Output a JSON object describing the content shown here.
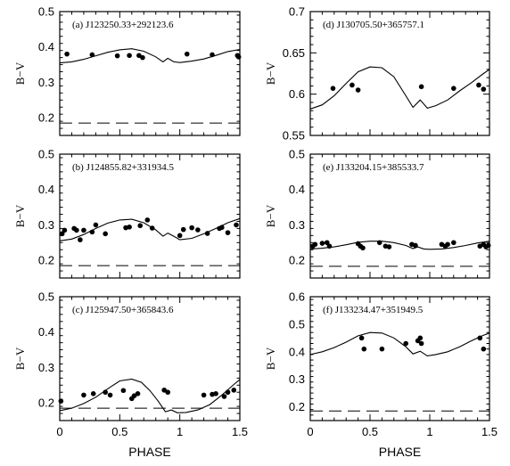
{
  "figure": {
    "xlabel": "PHASE",
    "ylabel": "B−V"
  },
  "chart_data": [
    {
      "type": "scatter",
      "title": "(a) J123250.33+292123.6",
      "xlabel": "",
      "ylabel": "B−V",
      "xlim": [
        0,
        1.5
      ],
      "ylim": [
        0.15,
        0.5
      ],
      "yticks": [
        0.2,
        0.3,
        0.4,
        0.5
      ],
      "xticks": [
        0,
        0.5,
        1,
        1.5
      ],
      "points": [
        [
          0.06,
          0.38
        ],
        [
          0.27,
          0.378
        ],
        [
          0.48,
          0.375
        ],
        [
          0.58,
          0.376
        ],
        [
          0.66,
          0.376
        ],
        [
          0.69,
          0.37
        ],
        [
          1.06,
          0.38
        ],
        [
          1.27,
          0.378
        ],
        [
          1.48,
          0.376
        ],
        [
          1.49,
          0.372
        ]
      ],
      "curve": [
        [
          0,
          0.355
        ],
        [
          0.1,
          0.358
        ],
        [
          0.2,
          0.365
        ],
        [
          0.3,
          0.375
        ],
        [
          0.4,
          0.385
        ],
        [
          0.5,
          0.392
        ],
        [
          0.6,
          0.395
        ],
        [
          0.7,
          0.388
        ],
        [
          0.8,
          0.372
        ],
        [
          0.86,
          0.358
        ],
        [
          0.9,
          0.368
        ],
        [
          0.95,
          0.358
        ],
        [
          1.0,
          0.356
        ],
        [
          1.1,
          0.36
        ],
        [
          1.2,
          0.366
        ],
        [
          1.3,
          0.376
        ],
        [
          1.4,
          0.387
        ],
        [
          1.5,
          0.393
        ]
      ],
      "reference_line": 0.185
    },
    {
      "type": "scatter",
      "title": "(b) J124855.82+331934.5",
      "xlabel": "",
      "ylabel": "B−V",
      "xlim": [
        0,
        1.5
      ],
      "ylim": [
        0.15,
        0.5
      ],
      "yticks": [
        0.2,
        0.3,
        0.4,
        0.5
      ],
      "xticks": [
        0,
        0.5,
        1,
        1.5
      ],
      "points": [
        [
          0.02,
          0.275
        ],
        [
          0.04,
          0.285
        ],
        [
          0.12,
          0.29
        ],
        [
          0.14,
          0.285
        ],
        [
          0.17,
          0.258
        ],
        [
          0.2,
          0.285
        ],
        [
          0.27,
          0.28
        ],
        [
          0.3,
          0.3
        ],
        [
          0.38,
          0.275
        ],
        [
          0.55,
          0.292
        ],
        [
          0.58,
          0.294
        ],
        [
          0.67,
          0.298
        ],
        [
          0.73,
          0.314
        ],
        [
          0.77,
          0.291
        ],
        [
          1.0,
          0.27
        ],
        [
          1.03,
          0.287
        ],
        [
          1.1,
          0.292
        ],
        [
          1.15,
          0.286
        ],
        [
          1.23,
          0.276
        ],
        [
          1.33,
          0.29
        ],
        [
          1.35,
          0.293
        ],
        [
          1.4,
          0.278
        ],
        [
          1.47,
          0.3
        ]
      ],
      "curve": [
        [
          0,
          0.255
        ],
        [
          0.1,
          0.26
        ],
        [
          0.2,
          0.273
        ],
        [
          0.3,
          0.29
        ],
        [
          0.4,
          0.305
        ],
        [
          0.5,
          0.314
        ],
        [
          0.6,
          0.316
        ],
        [
          0.7,
          0.306
        ],
        [
          0.8,
          0.286
        ],
        [
          0.86,
          0.268
        ],
        [
          0.9,
          0.277
        ],
        [
          0.95,
          0.268
        ],
        [
          1.0,
          0.258
        ],
        [
          1.1,
          0.262
        ],
        [
          1.2,
          0.275
        ],
        [
          1.3,
          0.29
        ],
        [
          1.4,
          0.306
        ],
        [
          1.5,
          0.318
        ]
      ],
      "reference_line": 0.185
    },
    {
      "type": "scatter",
      "title": "(c) J125947.50+365843.6",
      "xlabel": "PHASE",
      "ylabel": "B−V",
      "xlim": [
        0,
        1.5
      ],
      "ylim": [
        0.15,
        0.5
      ],
      "yticks": [
        0.2,
        0.3,
        0.4,
        0.5
      ],
      "xticks": [
        0,
        0.5,
        1,
        1.5
      ],
      "xticklabels": [
        "0",
        "0.5",
        "1",
        "1.5"
      ],
      "points": [
        [
          0.01,
          0.205
        ],
        [
          0.2,
          0.222
        ],
        [
          0.28,
          0.226
        ],
        [
          0.38,
          0.23
        ],
        [
          0.42,
          0.222
        ],
        [
          0.53,
          0.235
        ],
        [
          0.6,
          0.212
        ],
        [
          0.62,
          0.22
        ],
        [
          0.65,
          0.226
        ],
        [
          0.87,
          0.236
        ],
        [
          0.9,
          0.23
        ],
        [
          1.2,
          0.222
        ],
        [
          1.27,
          0.224
        ],
        [
          1.3,
          0.226
        ],
        [
          1.37,
          0.218
        ],
        [
          1.4,
          0.23
        ],
        [
          1.45,
          0.236
        ]
      ],
      "curve": [
        [
          0,
          0.178
        ],
        [
          0.1,
          0.185
        ],
        [
          0.2,
          0.198
        ],
        [
          0.3,
          0.216
        ],
        [
          0.4,
          0.24
        ],
        [
          0.5,
          0.262
        ],
        [
          0.6,
          0.267
        ],
        [
          0.68,
          0.258
        ],
        [
          0.75,
          0.235
        ],
        [
          0.82,
          0.205
        ],
        [
          0.88,
          0.175
        ],
        [
          0.93,
          0.18
        ],
        [
          0.98,
          0.172
        ],
        [
          1.05,
          0.173
        ],
        [
          1.15,
          0.18
        ],
        [
          1.25,
          0.195
        ],
        [
          1.35,
          0.222
        ],
        [
          1.45,
          0.252
        ],
        [
          1.5,
          0.266
        ]
      ],
      "reference_line": 0.185
    },
    {
      "type": "scatter",
      "title": "(d) J130705.50+365757.1",
      "xlabel": "",
      "ylabel": "B−V",
      "xlim": [
        0,
        1.5
      ],
      "ylim": [
        0.55,
        0.7
      ],
      "yticks": [
        0.55,
        0.6,
        0.65,
        0.7
      ],
      "xticks": [
        0,
        0.5,
        1,
        1.5
      ],
      "points": [
        [
          0.19,
          0.607
        ],
        [
          0.35,
          0.611
        ],
        [
          0.4,
          0.605
        ],
        [
          0.93,
          0.609
        ],
        [
          1.2,
          0.607
        ],
        [
          1.41,
          0.611
        ],
        [
          1.45,
          0.606
        ]
      ],
      "curve": [
        [
          0,
          0.582
        ],
        [
          0.1,
          0.587
        ],
        [
          0.2,
          0.598
        ],
        [
          0.3,
          0.613
        ],
        [
          0.4,
          0.627
        ],
        [
          0.5,
          0.633
        ],
        [
          0.6,
          0.632
        ],
        [
          0.7,
          0.621
        ],
        [
          0.8,
          0.598
        ],
        [
          0.86,
          0.584
        ],
        [
          0.92,
          0.593
        ],
        [
          0.98,
          0.583
        ],
        [
          1.05,
          0.586
        ],
        [
          1.15,
          0.593
        ],
        [
          1.25,
          0.604
        ],
        [
          1.35,
          0.614
        ],
        [
          1.45,
          0.625
        ],
        [
          1.5,
          0.63
        ]
      ]
    },
    {
      "type": "scatter",
      "title": "(e) J133204.15+385533.7",
      "xlabel": "",
      "ylabel": "B−V",
      "xlim": [
        0,
        1.5
      ],
      "ylim": [
        0.15,
        0.5
      ],
      "yticks": [
        0.2,
        0.3,
        0.4,
        0.5
      ],
      "xticks": [
        0,
        0.5,
        1,
        1.5
      ],
      "points": [
        [
          0.02,
          0.24
        ],
        [
          0.04,
          0.245
        ],
        [
          0.1,
          0.248
        ],
        [
          0.14,
          0.25
        ],
        [
          0.16,
          0.24
        ],
        [
          0.4,
          0.247
        ],
        [
          0.42,
          0.24
        ],
        [
          0.44,
          0.235
        ],
        [
          0.58,
          0.25
        ],
        [
          0.63,
          0.24
        ],
        [
          0.66,
          0.238
        ],
        [
          0.85,
          0.245
        ],
        [
          0.88,
          0.242
        ],
        [
          1.1,
          0.245
        ],
        [
          1.13,
          0.24
        ],
        [
          1.15,
          0.245
        ],
        [
          1.2,
          0.25
        ],
        [
          1.42,
          0.24
        ],
        [
          1.45,
          0.245
        ],
        [
          1.47,
          0.238
        ],
        [
          1.49,
          0.242
        ]
      ],
      "curve": [
        [
          0,
          0.232
        ],
        [
          0.1,
          0.234
        ],
        [
          0.2,
          0.238
        ],
        [
          0.3,
          0.244
        ],
        [
          0.4,
          0.251
        ],
        [
          0.5,
          0.254
        ],
        [
          0.6,
          0.254
        ],
        [
          0.7,
          0.25
        ],
        [
          0.8,
          0.242
        ],
        [
          0.86,
          0.233
        ],
        [
          0.9,
          0.238
        ],
        [
          0.95,
          0.232
        ],
        [
          1.0,
          0.231
        ],
        [
          1.1,
          0.232
        ],
        [
          1.2,
          0.236
        ],
        [
          1.3,
          0.242
        ],
        [
          1.4,
          0.249
        ],
        [
          1.5,
          0.254
        ]
      ],
      "reference_line": 0.183
    },
    {
      "type": "scatter",
      "title": "(f) J133234.47+351949.5",
      "xlabel": "PHASE",
      "ylabel": "B−V",
      "xlim": [
        0,
        1.5
      ],
      "ylim": [
        0.15,
        0.6
      ],
      "yticks": [
        0.2,
        0.3,
        0.4,
        0.5,
        0.6
      ],
      "xticks": [
        0,
        0.5,
        1,
        1.5
      ],
      "xticklabels": [
        "0",
        "0.5",
        "1",
        "1.5"
      ],
      "points": [
        [
          0.43,
          0.45
        ],
        [
          0.45,
          0.41
        ],
        [
          0.6,
          0.41
        ],
        [
          0.8,
          0.43
        ],
        [
          0.9,
          0.44
        ],
        [
          0.92,
          0.45
        ],
        [
          0.93,
          0.43
        ],
        [
          1.42,
          0.45
        ],
        [
          1.45,
          0.41
        ]
      ],
      "curve": [
        [
          0,
          0.39
        ],
        [
          0.1,
          0.4
        ],
        [
          0.2,
          0.415
        ],
        [
          0.3,
          0.435
        ],
        [
          0.4,
          0.458
        ],
        [
          0.5,
          0.47
        ],
        [
          0.6,
          0.468
        ],
        [
          0.7,
          0.45
        ],
        [
          0.8,
          0.418
        ],
        [
          0.86,
          0.392
        ],
        [
          0.92,
          0.402
        ],
        [
          0.98,
          0.385
        ],
        [
          1.05,
          0.39
        ],
        [
          1.15,
          0.4
        ],
        [
          1.25,
          0.418
        ],
        [
          1.35,
          0.44
        ],
        [
          1.45,
          0.46
        ],
        [
          1.5,
          0.468
        ]
      ],
      "reference_line": 0.185
    }
  ]
}
